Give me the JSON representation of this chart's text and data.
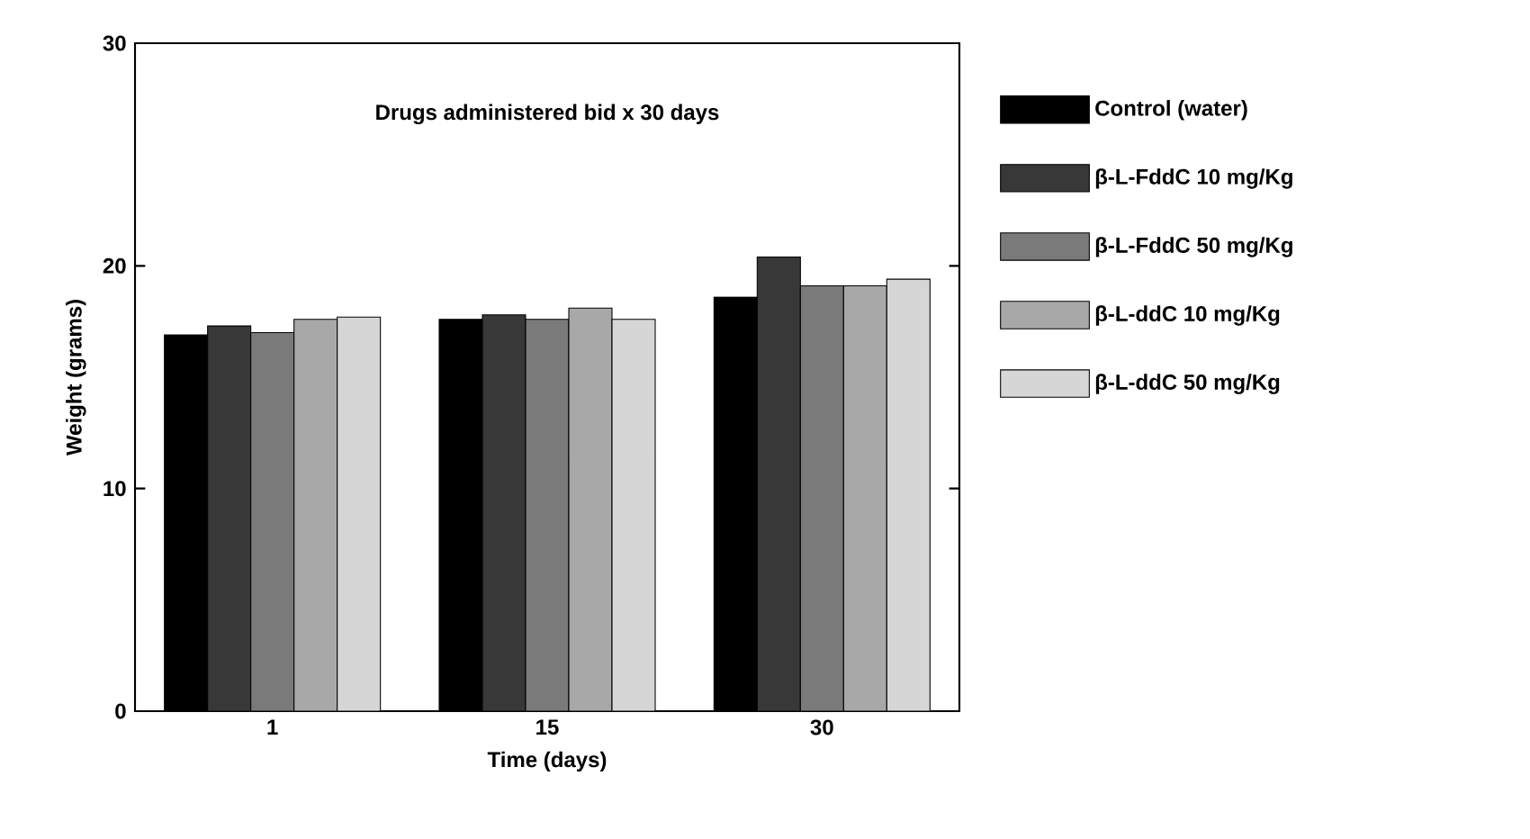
{
  "chart_data": {
    "type": "bar",
    "title": "Drugs administered bid x 30 days",
    "xlabel": "Time (days)",
    "ylabel": "Weight (grams)",
    "categories": [
      "1",
      "15",
      "30"
    ],
    "series": [
      {
        "name": "Control (water)",
        "color": "#000000",
        "values": [
          16.9,
          17.6,
          18.6
        ]
      },
      {
        "name": "β-L-FddC 10 mg/Kg",
        "color": "#383838",
        "values": [
          17.3,
          17.8,
          20.4
        ]
      },
      {
        "name": "β-L-FddC 50 mg/Kg",
        "color": "#7a7a7a",
        "values": [
          17.0,
          17.6,
          19.1
        ]
      },
      {
        "name": "β-L-ddC 10 mg/Kg",
        "color": "#a8a8a8",
        "values": [
          17.6,
          18.1,
          19.1
        ]
      },
      {
        "name": "β-L-ddC 50 mg/Kg",
        "color": "#d6d6d6",
        "values": [
          17.7,
          17.6,
          19.4
        ]
      }
    ],
    "ylim": [
      0,
      30
    ],
    "yticks": [
      0,
      10,
      20,
      30
    ],
    "legend": "right",
    "grid": false
  }
}
